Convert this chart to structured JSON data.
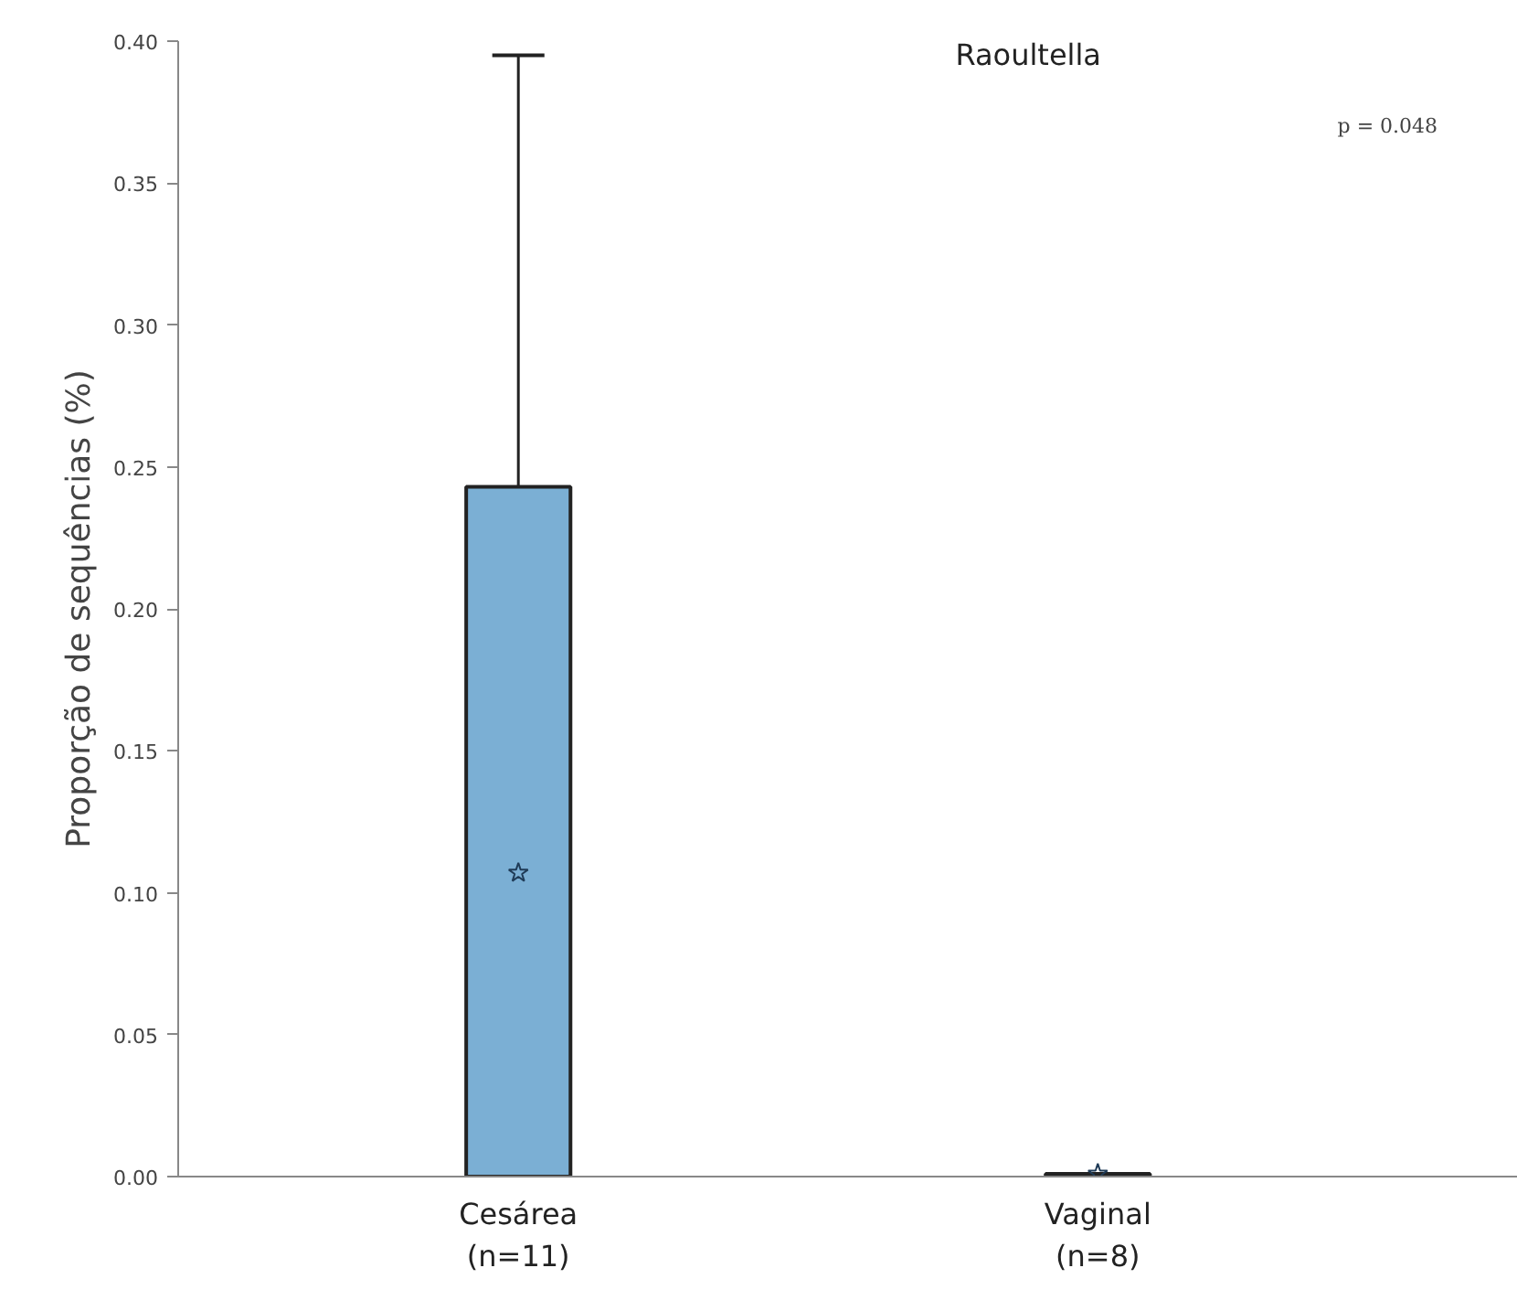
{
  "chart_data": {
    "type": "bar",
    "title": "Raoultella",
    "ylabel": "Proporção de sequências (%)",
    "categories": [
      "Cesárea\n(n=11)",
      "Vaginal\n(n=8)"
    ],
    "series": [
      {
        "type": "bar",
        "color": "#7bafd4",
        "values": [
          0.243,
          0.001
        ],
        "errors": [
          [
            0.243,
            0.395
          ],
          null
        ]
      },
      {
        "type": "scatter",
        "marker": "star",
        "color": "#1f3b57",
        "x": [
          "Cesárea\n(n=11)",
          "Vaginal\n(n=8)"
        ],
        "values": [
          0.107,
          0.001
        ]
      }
    ],
    "ylim": [
      0,
      0.4
    ],
    "yticks": [
      {
        "value": 0,
        "label": "0.00"
      },
      {
        "value": 0.05,
        "label": "0.05"
      },
      {
        "value": 0.1,
        "label": "0.10"
      },
      {
        "value": 0.15,
        "label": "0.15"
      },
      {
        "value": 0.2,
        "label": "0.20"
      },
      {
        "value": 0.25,
        "label": "0.25"
      },
      {
        "value": 0.3,
        "label": "0.30"
      },
      {
        "value": 0.35,
        "label": "0.35"
      },
      {
        "value": 0.4,
        "label": "0.40"
      }
    ],
    "grid": false,
    "annotations": [
      "p = 0.048"
    ]
  }
}
